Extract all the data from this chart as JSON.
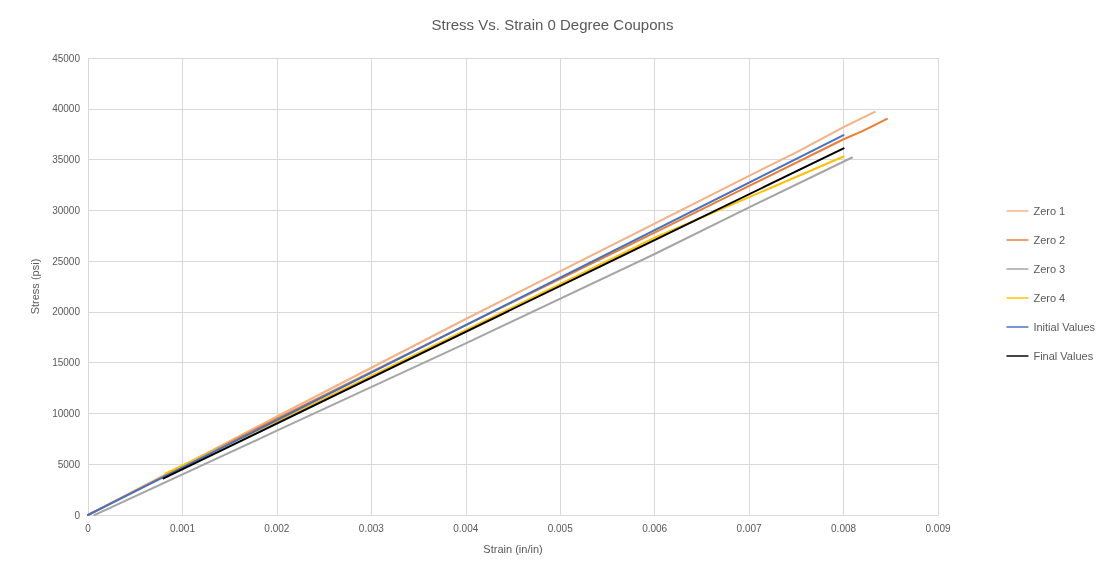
{
  "chart_data": {
    "type": "line",
    "title": "Stress Vs. Strain 0 Degree Coupons",
    "xlabel": "Strain (in/in)",
    "ylabel": "Stress (psi)",
    "xlim": [
      0,
      0.009
    ],
    "xticks": [
      0,
      0.001,
      0.002,
      0.003,
      0.004,
      0.005,
      0.006,
      0.007,
      0.008,
      0.009
    ],
    "ylim": [
      0,
      45000
    ],
    "yticks": [
      0,
      5000,
      10000,
      15000,
      20000,
      25000,
      30000,
      35000,
      40000,
      45000
    ],
    "grid": true,
    "legend": "right",
    "marker": "none",
    "line_style": "solid",
    "series": [
      {
        "name": "Zero 1",
        "color": "#f4b183",
        "x": [
          0,
          0.002,
          0.004,
          0.006,
          0.007,
          0.0075,
          0.008,
          0.00833
        ],
        "values": [
          0,
          9700,
          19300,
          28700,
          33400,
          35700,
          38200,
          39700
        ]
      },
      {
        "name": "Zero 2",
        "color": "#ed7d31",
        "x": [
          0,
          0.002,
          0.004,
          0.006,
          0.007,
          0.008,
          0.0082,
          0.00846
        ],
        "values": [
          0,
          9500,
          18700,
          27800,
          32400,
          37000,
          37800,
          39000
        ]
      },
      {
        "name": "Zero 3",
        "color": "#a5a5a5",
        "x": [
          7e-05,
          0.002,
          0.004,
          0.006,
          0.007,
          0.00809
        ],
        "values": [
          0,
          8300,
          16900,
          25700,
          30300,
          35200
        ]
      },
      {
        "name": "Zero 4",
        "color": "#ffc000",
        "x": [
          0.00082,
          0.002,
          0.004,
          0.006,
          0.007,
          0.008
        ],
        "values": [
          4100,
          9200,
          18200,
          27300,
          31300,
          35300
        ]
      },
      {
        "name": "Initial Values",
        "color": "#4472c4",
        "x": [
          0,
          0.008
        ],
        "values": [
          0,
          37400
        ]
      },
      {
        "name": "Final Values",
        "color": "#000000",
        "x": [
          0.0008,
          0.008
        ],
        "values": [
          3600,
          36100
        ]
      }
    ]
  }
}
